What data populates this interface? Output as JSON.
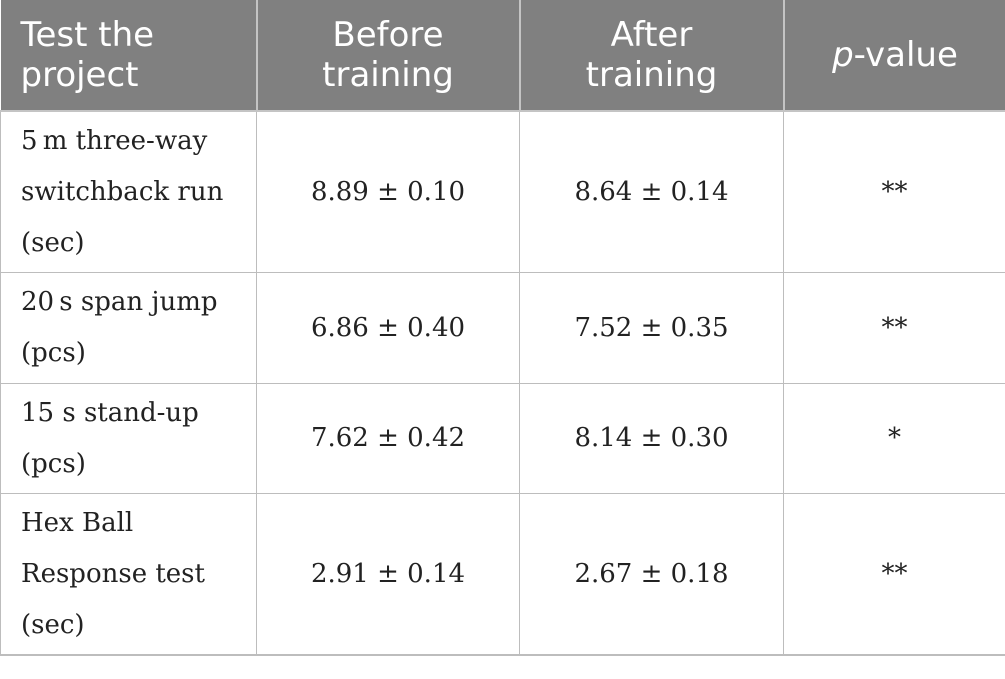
{
  "table": {
    "headers": [
      {
        "lines": [
          "Test the",
          "project"
        ]
      },
      {
        "lines": [
          "Before",
          "training"
        ]
      },
      {
        "lines": [
          "After",
          "training"
        ]
      },
      {
        "italic": "p",
        "rest": "-value"
      }
    ],
    "rows": [
      {
        "label_lines": [
          "5 m three-way",
          "switchback run",
          "(sec)"
        ],
        "before": "8.89 ± 0.10",
        "after": "8.64 ± 0.14",
        "p": "**"
      },
      {
        "label_lines": [
          "20 s span jump",
          "(pcs)"
        ],
        "before": "6.86 ± 0.40",
        "after": "7.52 ± 0.35",
        "p": "**"
      },
      {
        "label_lines": [
          "15 s stand-up",
          "(pcs)"
        ],
        "before": "7.62 ± 0.42",
        "after": "8.14 ± 0.30",
        "p": "*"
      },
      {
        "label_lines": [
          "Hex Ball",
          "Response test",
          "(sec)"
        ],
        "before": "2.91 ± 0.14",
        "after": "2.67 ± 0.18",
        "p": "**"
      }
    ]
  },
  "colors": {
    "header_bg": "#808080",
    "header_text": "#ffffff",
    "grid": "#bdbdbd",
    "body_text": "#222222"
  }
}
